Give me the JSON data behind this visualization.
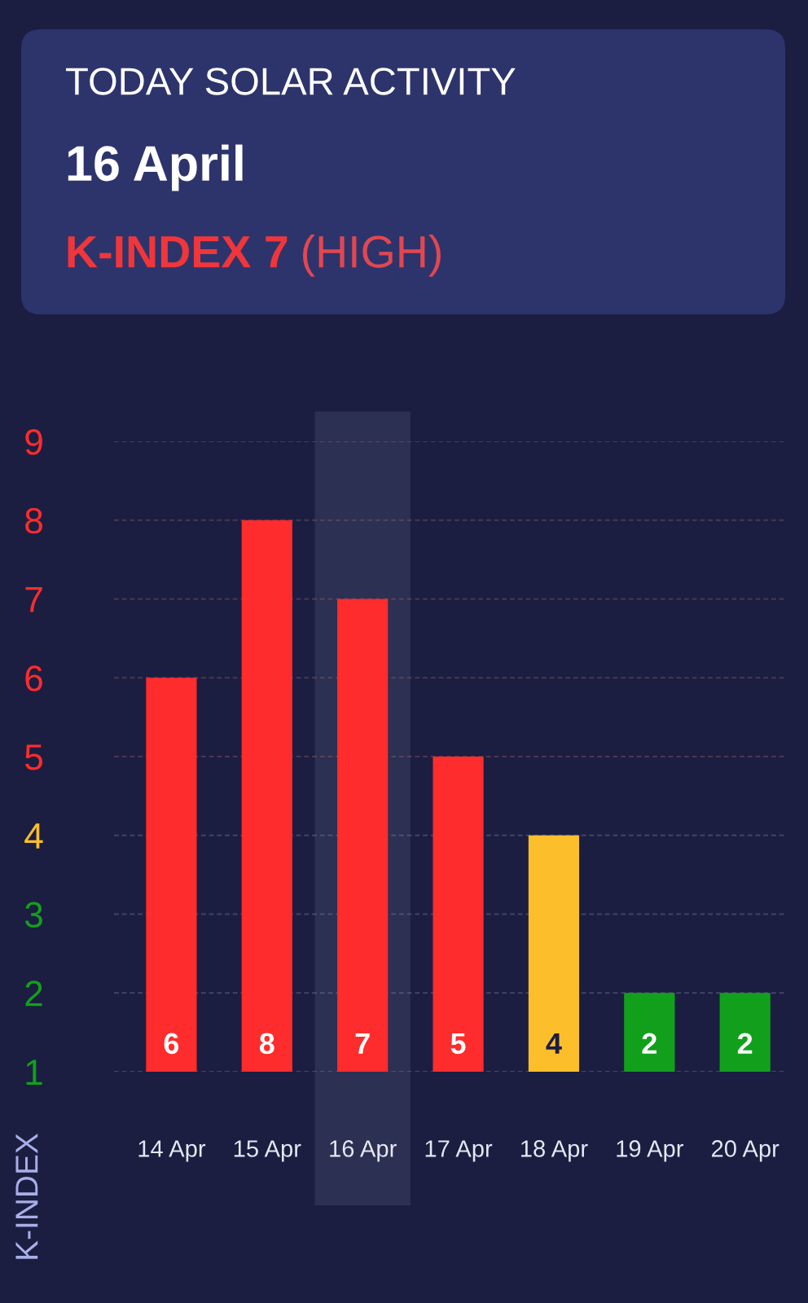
{
  "chart_data": {
    "type": "bar",
    "title": "TODAY SOLAR ACTIVITY",
    "subtitle": "16 April",
    "annotations": [
      "K-INDEX 7",
      "(HIGH)"
    ],
    "ylabel": "K-INDEX",
    "categories": [
      "14 Apr",
      "15 Apr",
      "16 Apr",
      "17 Apr",
      "18 Apr",
      "19 Apr",
      "20 Apr"
    ],
    "values": [
      6,
      8,
      7,
      5,
      4,
      2,
      2
    ],
    "colors": [
      "#fe2c2c",
      "#fe2c2c",
      "#fe2c2c",
      "#fe2c2c",
      "#fcbf2b",
      "#12a01c",
      "#12a01c"
    ],
    "ylim": [
      1,
      9
    ],
    "yticks": [
      1,
      2,
      3,
      4,
      5,
      6,
      7,
      8,
      9
    ],
    "grid": "y",
    "data_labels": true,
    "bands": [
      {
        "axis": "x",
        "from": "16 Apr",
        "to": "16 Apr",
        "color": "#2c3052"
      }
    ]
  }
}
